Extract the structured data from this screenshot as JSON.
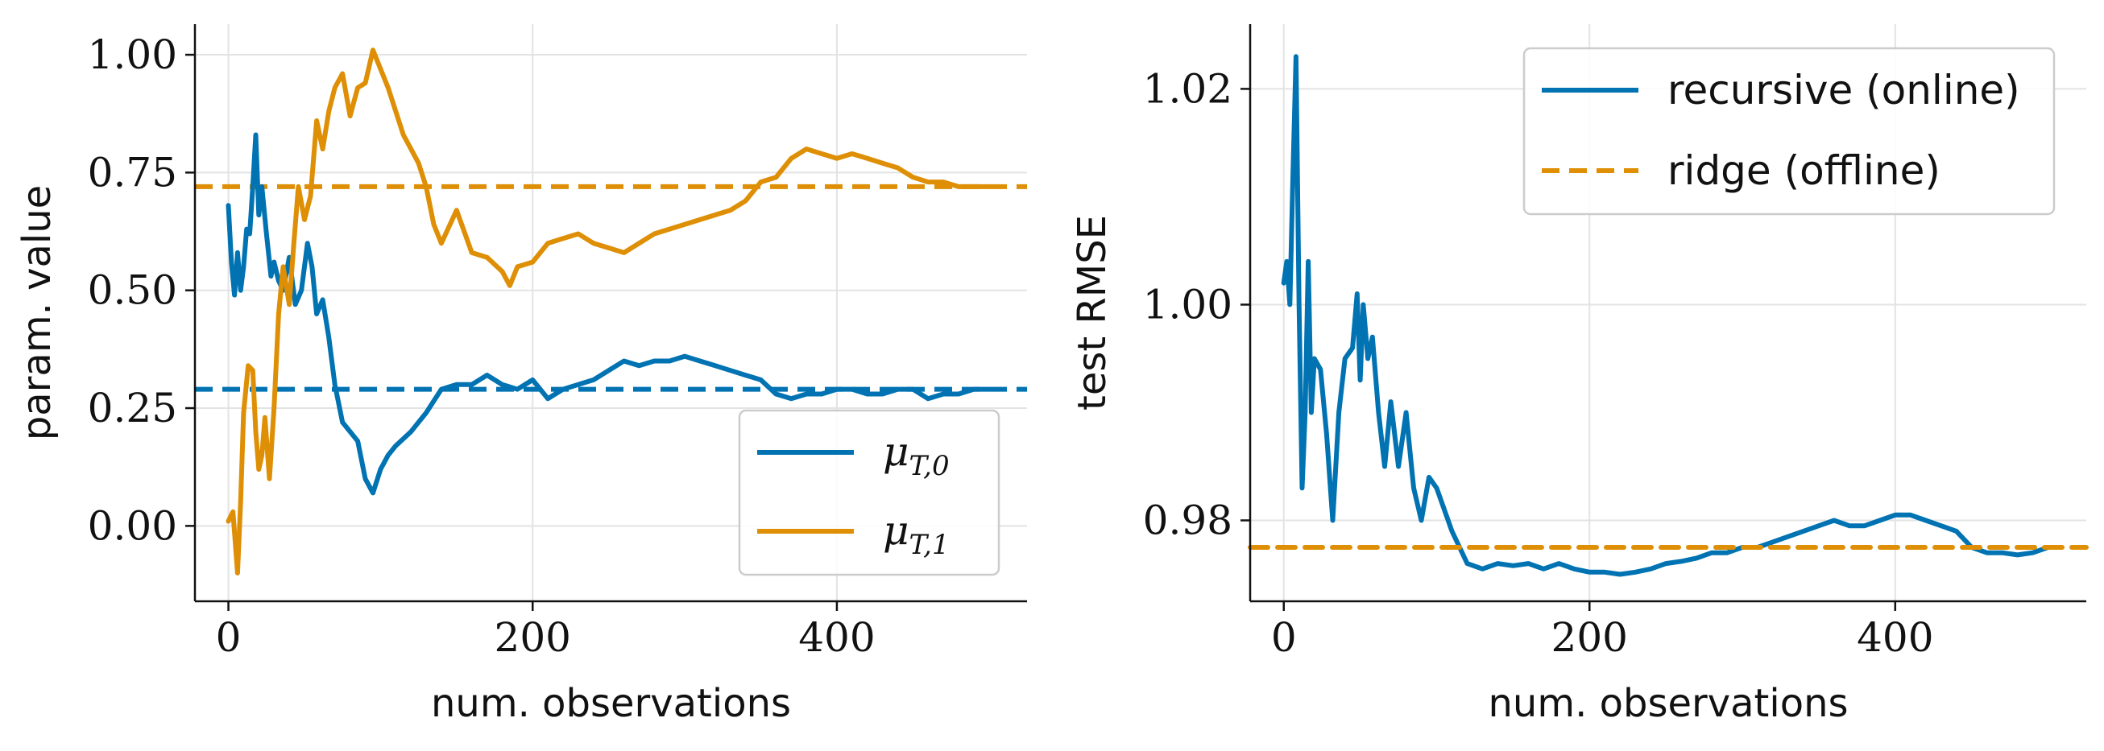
{
  "colors": {
    "series0": "#0173b2",
    "series1": "#de8f05"
  },
  "chart_data": [
    {
      "type": "line",
      "title": "",
      "xlabel": "num. observations",
      "ylabel": "param. value",
      "xlim": [
        -22,
        525
      ],
      "ylim": [
        -0.16,
        1.065
      ],
      "xticks": [
        0,
        200,
        400
      ],
      "xtick_labels": [
        "0",
        "200",
        "400"
      ],
      "yticks": [
        0.0,
        0.25,
        0.5,
        0.75,
        1.0
      ],
      "ytick_labels": [
        "0.00",
        "0.25",
        "0.50",
        "0.75",
        "1.00"
      ],
      "grid": true,
      "legend_position": "lower-right",
      "series": [
        {
          "name": "μT,0",
          "legend_main": "μ",
          "legend_sub": "T,0",
          "color": "#0173b2",
          "style": "solid",
          "x": [
            0,
            2,
            4,
            6,
            8,
            10,
            12,
            14,
            16,
            18,
            20,
            22,
            25,
            28,
            30,
            33,
            36,
            40,
            44,
            48,
            52,
            55,
            58,
            62,
            66,
            70,
            75,
            80,
            85,
            90,
            95,
            100,
            105,
            110,
            120,
            130,
            140,
            150,
            160,
            170,
            180,
            190,
            200,
            210,
            220,
            230,
            240,
            250,
            260,
            270,
            280,
            290,
            300,
            310,
            320,
            330,
            340,
            350,
            360,
            370,
            380,
            390,
            400,
            410,
            420,
            430,
            440,
            450,
            460,
            470,
            480,
            490,
            500
          ],
          "values": [
            0.68,
            0.56,
            0.49,
            0.58,
            0.5,
            0.55,
            0.63,
            0.62,
            0.72,
            0.83,
            0.66,
            0.72,
            0.62,
            0.53,
            0.56,
            0.52,
            0.5,
            0.57,
            0.47,
            0.5,
            0.6,
            0.55,
            0.45,
            0.48,
            0.4,
            0.3,
            0.22,
            0.2,
            0.18,
            0.1,
            0.07,
            0.12,
            0.15,
            0.17,
            0.2,
            0.24,
            0.29,
            0.3,
            0.3,
            0.32,
            0.3,
            0.29,
            0.31,
            0.27,
            0.29,
            0.3,
            0.31,
            0.33,
            0.35,
            0.34,
            0.35,
            0.35,
            0.36,
            0.35,
            0.34,
            0.33,
            0.32,
            0.31,
            0.28,
            0.27,
            0.28,
            0.28,
            0.29,
            0.29,
            0.28,
            0.28,
            0.29,
            0.29,
            0.27,
            0.28,
            0.28,
            0.29,
            0.29
          ]
        },
        {
          "name": "μT,1",
          "legend_main": "μ",
          "legend_sub": "T,1",
          "color": "#de8f05",
          "style": "solid",
          "x": [
            0,
            3,
            6,
            8,
            10,
            13,
            16,
            18,
            20,
            22,
            24,
            27,
            30,
            33,
            36,
            40,
            43,
            46,
            50,
            54,
            58,
            62,
            66,
            70,
            75,
            80,
            85,
            90,
            95,
            100,
            105,
            110,
            115,
            120,
            125,
            130,
            135,
            140,
            150,
            160,
            170,
            180,
            185,
            190,
            200,
            210,
            220,
            230,
            240,
            250,
            260,
            270,
            280,
            290,
            300,
            310,
            320,
            330,
            340,
            350,
            360,
            370,
            380,
            390,
            400,
            410,
            420,
            430,
            440,
            450,
            460,
            470,
            480,
            490,
            500
          ],
          "values": [
            0.01,
            0.03,
            -0.1,
            0.05,
            0.24,
            0.34,
            0.33,
            0.2,
            0.12,
            0.15,
            0.23,
            0.1,
            0.25,
            0.45,
            0.55,
            0.47,
            0.6,
            0.72,
            0.65,
            0.7,
            0.86,
            0.8,
            0.88,
            0.93,
            0.96,
            0.87,
            0.93,
            0.94,
            1.01,
            0.97,
            0.93,
            0.88,
            0.83,
            0.8,
            0.77,
            0.72,
            0.64,
            0.6,
            0.67,
            0.58,
            0.57,
            0.54,
            0.51,
            0.55,
            0.56,
            0.6,
            0.61,
            0.62,
            0.6,
            0.59,
            0.58,
            0.6,
            0.62,
            0.63,
            0.64,
            0.65,
            0.66,
            0.67,
            0.69,
            0.73,
            0.74,
            0.78,
            0.8,
            0.79,
            0.78,
            0.79,
            0.78,
            0.77,
            0.76,
            0.74,
            0.73,
            0.73,
            0.72,
            0.72,
            0.72
          ]
        }
      ],
      "reference_lines": [
        {
          "y": 0.29,
          "color": "#0173b2",
          "style": "dashed"
        },
        {
          "y": 0.72,
          "color": "#de8f05",
          "style": "dashed"
        }
      ]
    },
    {
      "type": "line",
      "title": "",
      "xlabel": "num. observations",
      "ylabel": "test RMSE",
      "xlim": [
        -22,
        525
      ],
      "ylim": [
        0.9725,
        1.026
      ],
      "xticks": [
        0,
        200,
        400
      ],
      "xtick_labels": [
        "0",
        "200",
        "400"
      ],
      "yticks": [
        0.98,
        1.0,
        1.02
      ],
      "ytick_labels": [
        "0.98",
        "1.00",
        "1.02"
      ],
      "grid": true,
      "legend_position": "upper-right",
      "series": [
        {
          "name": "recursive (online)",
          "color": "#0173b2",
          "style": "solid",
          "x": [
            0,
            2,
            4,
            6,
            8,
            10,
            12,
            14,
            16,
            18,
            20,
            24,
            28,
            32,
            36,
            40,
            45,
            48,
            50,
            52,
            55,
            58,
            62,
            66,
            70,
            75,
            80,
            85,
            90,
            95,
            100,
            110,
            120,
            130,
            140,
            150,
            160,
            170,
            180,
            190,
            200,
            210,
            220,
            230,
            240,
            250,
            260,
            270,
            280,
            290,
            300,
            310,
            320,
            330,
            340,
            350,
            360,
            370,
            380,
            390,
            400,
            410,
            420,
            430,
            440,
            450,
            460,
            470,
            480,
            490,
            500
          ],
          "values": [
            1.002,
            1.004,
            1.0,
            1.012,
            1.023,
            1.0,
            0.983,
            0.99,
            1.004,
            0.99,
            0.995,
            0.994,
            0.988,
            0.98,
            0.99,
            0.995,
            0.996,
            1.001,
            0.993,
            1.0,
            0.995,
            0.997,
            0.99,
            0.985,
            0.991,
            0.985,
            0.99,
            0.983,
            0.98,
            0.984,
            0.983,
            0.979,
            0.976,
            0.9755,
            0.976,
            0.9758,
            0.976,
            0.9755,
            0.976,
            0.9755,
            0.9752,
            0.9752,
            0.975,
            0.9752,
            0.9755,
            0.976,
            0.9762,
            0.9765,
            0.977,
            0.977,
            0.9775,
            0.9775,
            0.978,
            0.9785,
            0.979,
            0.9795,
            0.98,
            0.9795,
            0.9795,
            0.98,
            0.9805,
            0.9805,
            0.98,
            0.9795,
            0.979,
            0.9775,
            0.977,
            0.977,
            0.9768,
            0.977,
            0.9775
          ]
        },
        {
          "name": "ridge (offline)",
          "color": "#de8f05",
          "style": "dashed",
          "x": [
            -22,
            525
          ],
          "values": [
            0.9775,
            0.9775
          ]
        }
      ]
    }
  ]
}
